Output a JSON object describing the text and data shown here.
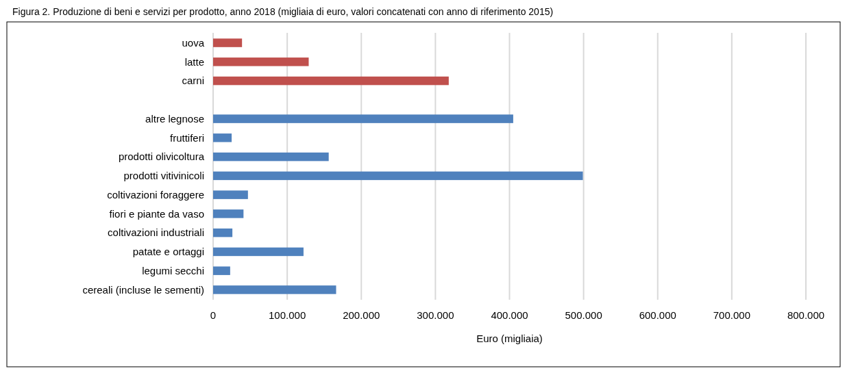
{
  "chart_data": {
    "type": "bar",
    "orientation": "horizontal",
    "title": "Figura 2. Produzione di beni e servizi per prodotto, anno 2018 (migliaia di euro, valori concatenati con anno di riferimento 2015)",
    "xlabel": "Euro (migliaia)",
    "categories": [
      "uova",
      "latte",
      "carni",
      null,
      "altre legnose",
      "fruttiferi",
      "prodotti olivicoltura",
      "prodotti vitivinicoli",
      "coltivazioni foraggere",
      "fiori e piante da vaso",
      "coltivazioni industriali",
      "patate e ortaggi",
      "legumi secchi",
      "cereali (incluse le sementi)"
    ],
    "values": [
      39000,
      129000,
      318000,
      null,
      405000,
      25000,
      156000,
      499000,
      47000,
      41000,
      26000,
      122000,
      23000,
      166000
    ],
    "colors": [
      "#c0504d",
      "#c0504d",
      "#c0504d",
      null,
      "#4f81bd",
      "#4f81bd",
      "#4f81bd",
      "#4f81bd",
      "#4f81bd",
      "#4f81bd",
      "#4f81bd",
      "#4f81bd",
      "#4f81bd",
      "#4f81bd"
    ],
    "xlim": [
      0,
      800000
    ],
    "xticks": [
      {
        "value": 0,
        "label": "0"
      },
      {
        "value": 100000,
        "label": "100.000"
      },
      {
        "value": 200000,
        "label": "200.000"
      },
      {
        "value": 300000,
        "label": "300.000"
      },
      {
        "value": 400000,
        "label": "400.000"
      },
      {
        "value": 500000,
        "label": "500.000"
      },
      {
        "value": 600000,
        "label": "600.000"
      },
      {
        "value": 700000,
        "label": "700.000"
      },
      {
        "value": 800000,
        "label": "800.000"
      }
    ],
    "grid": "x"
  }
}
